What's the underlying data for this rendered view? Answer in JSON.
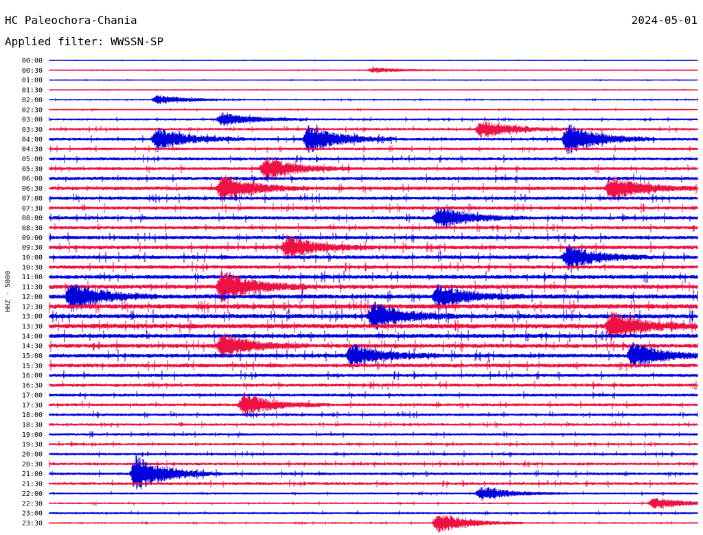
{
  "header": {
    "station": "HC Paleochora-Chania",
    "date": "2024-05-01",
    "filter": "Applied filter: WWSSN-SP"
  },
  "chart_data": {
    "type": "helicorder",
    "title": "HC Paleochora-Chania",
    "date": "2024-05-01",
    "filter": "WWSSN-SP",
    "ylabel": "HHZ - 5000",
    "row_interval_minutes": 30,
    "tick_labels": [
      "00:00",
      "00:30",
      "01:00",
      "01:30",
      "02:00",
      "02:30",
      "03:00",
      "03:30",
      "04:00",
      "04:30",
      "05:00",
      "05:30",
      "06:00",
      "06:30",
      "07:00",
      "07:30",
      "08:00",
      "08:30",
      "09:00",
      "09:30",
      "10:00",
      "10:30",
      "11:00",
      "11:30",
      "12:00",
      "12:30",
      "13:00",
      "13:30",
      "14:00",
      "14:30",
      "15:00",
      "15:30",
      "16:00",
      "16:30",
      "17:00",
      "17:30",
      "18:00",
      "18:30",
      "19:00",
      "19:30",
      "20:00",
      "20:30",
      "21:00",
      "21:30",
      "22:00",
      "22:30",
      "23:00",
      "23:30"
    ],
    "trace_colors": [
      "#0000dd",
      "#ee1144"
    ],
    "row_activity": [
      0.15,
      0.2,
      0.2,
      0.15,
      0.3,
      0.4,
      0.6,
      0.8,
      1.0,
      0.9,
      1.0,
      1.1,
      1.2,
      1.3,
      1.2,
      1.2,
      1.2,
      1.2,
      1.3,
      1.4,
      1.4,
      1.3,
      1.5,
      1.6,
      1.7,
      1.8,
      1.7,
      1.8,
      1.6,
      1.5,
      1.5,
      1.4,
      1.2,
      1.1,
      1.0,
      1.0,
      0.9,
      0.8,
      0.8,
      0.8,
      0.8,
      0.9,
      0.9,
      0.9,
      0.5,
      0.5,
      0.6,
      0.4
    ],
    "events": [
      {
        "time": "00:30",
        "minute": 15,
        "amplitude": 0.5
      },
      {
        "time": "02:00",
        "minute": 5,
        "amplitude": 0.8
      },
      {
        "time": "03:00",
        "minute": 8,
        "amplitude": 1.2
      },
      {
        "time": "03:30",
        "minute": 20,
        "amplitude": 1.6
      },
      {
        "time": "04:00",
        "minute": 5,
        "amplitude": 2.0
      },
      {
        "time": "04:00",
        "minute": 12,
        "amplitude": 2.5
      },
      {
        "time": "04:00",
        "minute": 24,
        "amplitude": 2.8
      },
      {
        "time": "05:30",
        "minute": 10,
        "amplitude": 2.0
      },
      {
        "time": "06:30",
        "minute": 8,
        "amplitude": 2.5
      },
      {
        "time": "06:30",
        "minute": 26,
        "amplitude": 2.2
      },
      {
        "time": "08:00",
        "minute": 18,
        "amplitude": 2.0
      },
      {
        "time": "09:30",
        "minute": 11,
        "amplitude": 2.0
      },
      {
        "time": "10:00",
        "minute": 24,
        "amplitude": 2.2
      },
      {
        "time": "11:30",
        "minute": 8,
        "amplitude": 3.0
      },
      {
        "time": "12:00",
        "minute": 1,
        "amplitude": 2.6
      },
      {
        "time": "12:00",
        "minute": 18,
        "amplitude": 2.0
      },
      {
        "time": "13:00",
        "minute": 15,
        "amplitude": 2.4
      },
      {
        "time": "13:30",
        "minute": 26,
        "amplitude": 2.6
      },
      {
        "time": "14:30",
        "minute": 8,
        "amplitude": 2.2
      },
      {
        "time": "15:00",
        "minute": 14,
        "amplitude": 2.0
      },
      {
        "time": "15:00",
        "minute": 27,
        "amplitude": 2.2
      },
      {
        "time": "17:30",
        "minute": 9,
        "amplitude": 2.0
      },
      {
        "time": "21:00",
        "minute": 4,
        "amplitude": 3.2
      },
      {
        "time": "22:00",
        "minute": 20,
        "amplitude": 1.2
      },
      {
        "time": "22:30",
        "minute": 28,
        "amplitude": 1.0
      },
      {
        "time": "23:30",
        "minute": 18,
        "amplitude": 1.8
      }
    ]
  }
}
